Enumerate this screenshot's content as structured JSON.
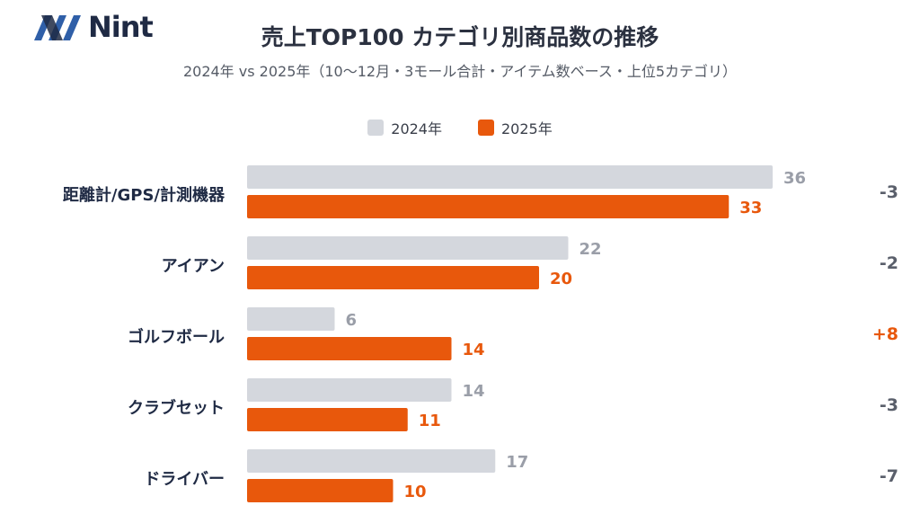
{
  "brand": {
    "name": "Nint"
  },
  "colors": {
    "y2024": "#d4d7dd",
    "y2025": "#e8580c",
    "label2024": "#9a9ea8",
    "label2025": "#e8580c",
    "diffNeg": "#5a5f6b",
    "diffPos": "#e8580c"
  },
  "chart_data": {
    "type": "bar",
    "orientation": "horizontal",
    "title": "売上TOP100 カテゴリ別商品数の推移",
    "subtitle": "2024年 vs 2025年（10〜12月・3モール合計・アイテム数ベース・上位5カテゴリ）",
    "categories": [
      "距離計/GPS/計測機器",
      "アイアン",
      "ゴルフボール",
      "クラブセット",
      "ドライバー"
    ],
    "series": [
      {
        "name": "2024年",
        "values": [
          36,
          22,
          6,
          14,
          17
        ]
      },
      {
        "name": "2025年",
        "values": [
          33,
          20,
          14,
          11,
          10
        ]
      }
    ],
    "differences": [
      "-3",
      "-2",
      "+8",
      "-3",
      "-7"
    ],
    "xlim": [
      0,
      36
    ],
    "legend": "top-center",
    "grid": false
  }
}
